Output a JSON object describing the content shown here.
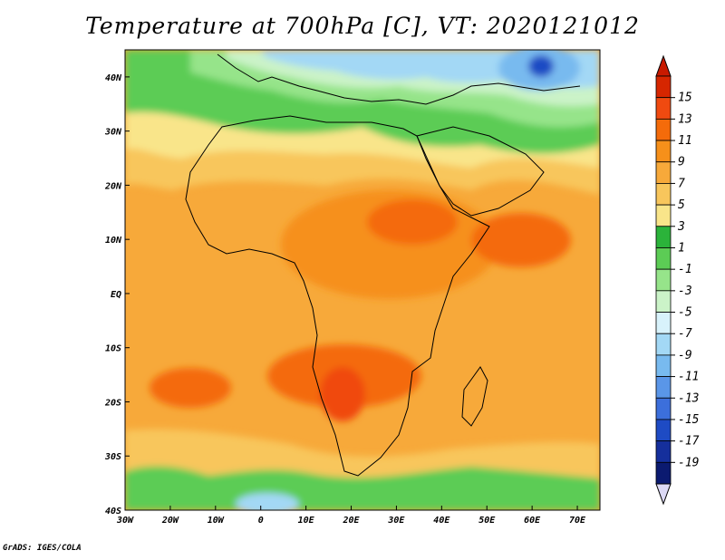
{
  "map": {
    "title": "Temperature at 700hPa [C], VT: 2020121012",
    "projection": "lat-lon",
    "lon_range": [
      -30,
      75
    ],
    "lat_range": [
      -40,
      45
    ],
    "x_ticks": [
      {
        "value": -30,
        "label": "30W"
      },
      {
        "value": -20,
        "label": "20W"
      },
      {
        "value": -10,
        "label": "10W"
      },
      {
        "value": 0,
        "label": "0"
      },
      {
        "value": 10,
        "label": "10E"
      },
      {
        "value": 20,
        "label": "20E"
      },
      {
        "value": 30,
        "label": "30E"
      },
      {
        "value": 40,
        "label": "40E"
      },
      {
        "value": 50,
        "label": "50E"
      },
      {
        "value": 60,
        "label": "60E"
      },
      {
        "value": 70,
        "label": "70E"
      }
    ],
    "y_ticks": [
      {
        "value": 40,
        "label": "40N"
      },
      {
        "value": 30,
        "label": "30N"
      },
      {
        "value": 20,
        "label": "20N"
      },
      {
        "value": 10,
        "label": "10N"
      },
      {
        "value": 0,
        "label": "EQ"
      },
      {
        "value": -10,
        "label": "10S"
      },
      {
        "value": -20,
        "label": "20S"
      },
      {
        "value": -30,
        "label": "30S"
      },
      {
        "value": -40,
        "label": "40S"
      }
    ],
    "variable": "Temperature",
    "units": "C",
    "colorbar": {
      "labels": [
        "15",
        "13",
        "11",
        "9",
        "7",
        "5",
        "3",
        "1",
        "-1",
        "-3",
        "-5",
        "-7",
        "-9",
        "-11",
        "-13",
        "-15",
        "-17",
        "-19"
      ],
      "colors": [
        "#d62600",
        "#f04a10",
        "#f46b0a",
        "#f6901a",
        "#f7a93a",
        "#f8c65c",
        "#f9e58a",
        "#2bb33a",
        "#5ccc55",
        "#96e48a",
        "#cbf3c8",
        "#d8f2fb",
        "#a3d8f5",
        "#78baef",
        "#5a96e8",
        "#3c6fdb",
        "#1e4bc4",
        "#152f9c",
        "#0b1a70"
      ],
      "top_arrow_color": "#c81a00",
      "bottom_arrow_color": "#dcd9f5"
    },
    "color_regions": [
      {
        "name": "base-tropics",
        "color": "#f7a93a"
      },
      {
        "name": "subtropics-north",
        "color": "#f8c65c"
      },
      {
        "name": "sahara-cool",
        "color": "#f9e58a"
      },
      {
        "name": "north-africa-green",
        "color": "#5ccc55"
      },
      {
        "name": "mediterranean-green",
        "color": "#96e48a"
      },
      {
        "name": "europe-cool",
        "color": "#cbf3c8"
      },
      {
        "name": "europe-cold",
        "color": "#a3d8f5"
      },
      {
        "name": "caspian-cold",
        "color": "#78baef"
      },
      {
        "name": "cold-core",
        "color": "#1e4bc4"
      },
      {
        "name": "warm-central-africa",
        "color": "#f6901a"
      },
      {
        "name": "warm-ethiopia",
        "color": "#f46b0a"
      },
      {
        "name": "warm-arabian-sea",
        "color": "#f46b0a"
      },
      {
        "name": "warm-atlantic-south",
        "color": "#f46b0a"
      },
      {
        "name": "warm-southern-africa",
        "color": "#f46b0a"
      },
      {
        "name": "hot-kalahari",
        "color": "#f04a10"
      },
      {
        "name": "south-subtropics",
        "color": "#f8c65c"
      },
      {
        "name": "south-ocean-green",
        "color": "#5ccc55"
      },
      {
        "name": "south-ocean-cold",
        "color": "#a3d8f5"
      }
    ],
    "credit": "GrADS: IGES/COLA"
  }
}
